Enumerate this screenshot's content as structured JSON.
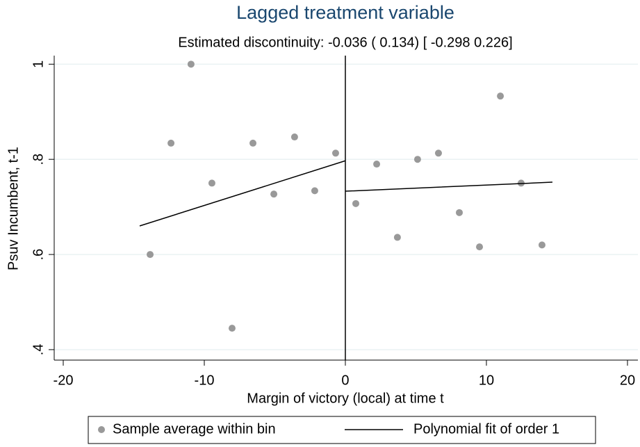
{
  "chart_data": {
    "type": "scatter",
    "title": "Lagged treatment variable",
    "subtitle": "Estimated discontinuity: -0.036 ( 0.134) [ -0.298 0.226]",
    "xlabel": "Margin of victory (local) at time t",
    "ylabel": "Psuv Incumbent, t-1",
    "xlim": [
      -20.64,
      20.74
    ],
    "ylim": [
      0.378,
      1.018
    ],
    "xticks": [
      -20,
      -10,
      0,
      10,
      20
    ],
    "yticks": [
      {
        "value": 0.4,
        "label": ".4"
      },
      {
        "value": 0.6,
        "label": ".6"
      },
      {
        "value": 0.8,
        "label": ".8"
      },
      1
    ],
    "grid": true,
    "xline": 0,
    "legend": "bottom",
    "series": [
      {
        "name": "Sample average within bin",
        "type": "scatter",
        "color": "#999999",
        "x": [
          -13.84,
          -12.36,
          -10.94,
          -9.46,
          -8.03,
          -6.55,
          -5.07,
          -3.6,
          -2.17,
          -0.69,
          0.74,
          2.22,
          3.69,
          5.12,
          6.6,
          8.08,
          9.51,
          10.99,
          12.46,
          13.94
        ],
        "values": [
          0.6,
          0.834,
          1.0,
          0.75,
          0.445,
          0.834,
          0.727,
          0.847,
          0.734,
          0.813,
          0.707,
          0.79,
          0.636,
          0.8,
          0.813,
          0.688,
          0.616,
          0.933,
          0.75,
          0.62
        ]
      },
      {
        "name": "Polynomial fit of order 1",
        "type": "line",
        "color": "#000000",
        "x": [
          -14.58,
          0,
          0,
          0,
          14.68
        ],
        "values": [
          0.66,
          0.797,
          null,
          0.733,
          0.752
        ]
      }
    ]
  }
}
